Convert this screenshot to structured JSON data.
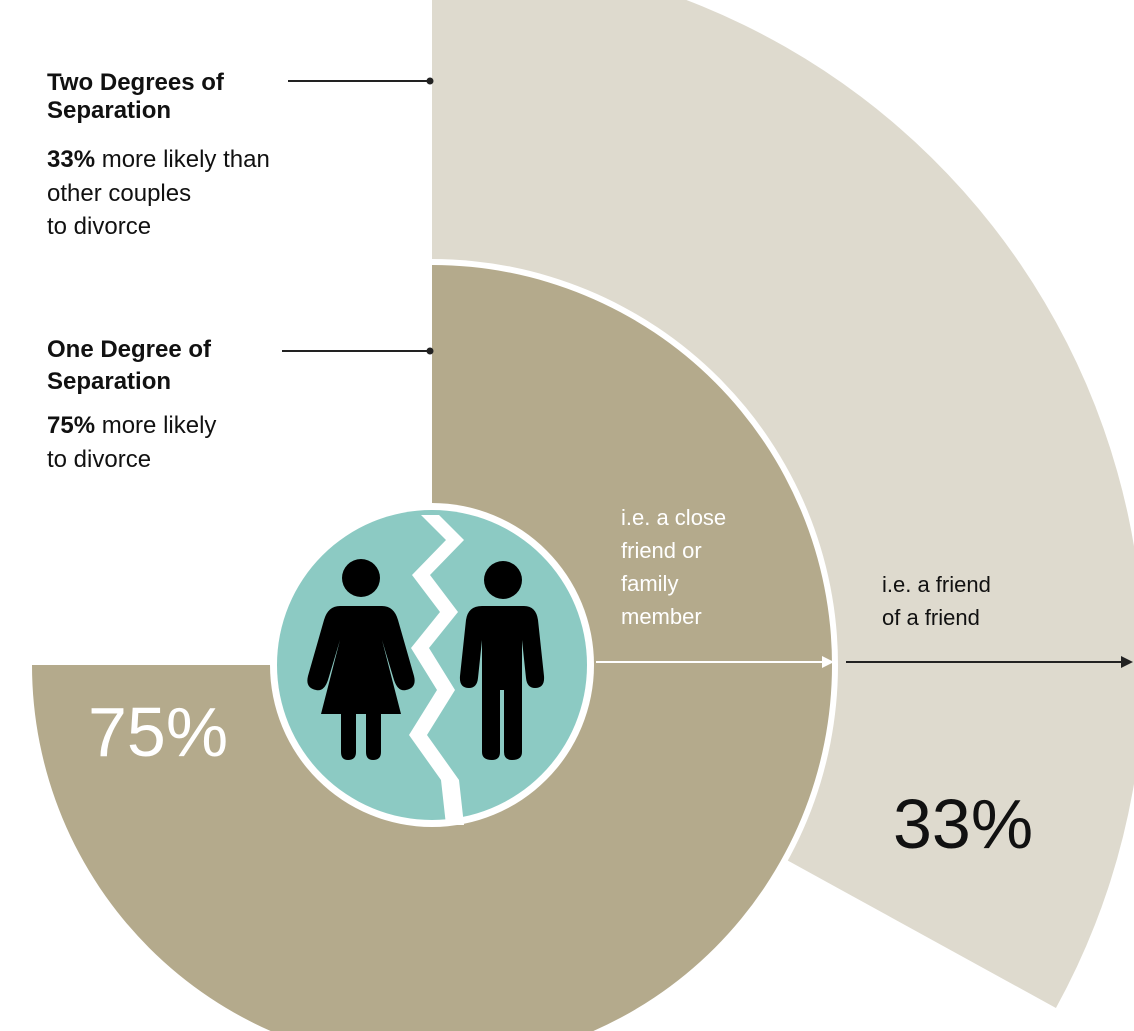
{
  "chart_data": {
    "type": "pie",
    "series": [
      {
        "name": "One Degree of Separation",
        "value": 75,
        "value_label": "75%",
        "stat_prefix": "75%",
        "stat_lines": [
          " more likely",
          "to divorce"
        ],
        "example_lines": [
          "i.e. a close",
          "friend or",
          "family",
          "member"
        ]
      },
      {
        "name": "Two Degrees of Separation",
        "value": 33,
        "value_label": "33%",
        "stat_prefix": "33%",
        "stat_lines": [
          " more likely than",
          "other couples",
          "to divorce"
        ],
        "example_lines": [
          "i.e. a friend",
          "of a friend"
        ]
      }
    ],
    "colors": {
      "inner_ring": "#b4aa8c",
      "outer_ring": "#dedace",
      "center": "#8ccac3",
      "figure": "#000000",
      "label_light": "#ffffff",
      "label_dark": "#111111"
    },
    "icons": [
      "woman-icon",
      "man-icon",
      "broken-heart-crack-icon"
    ]
  }
}
